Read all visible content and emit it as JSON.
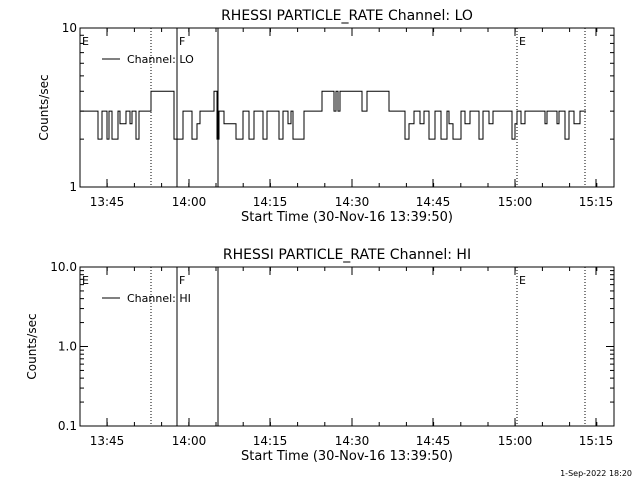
{
  "chart_data": [
    {
      "type": "line",
      "title": "RHESSI PARTICLE_RATE Channel: LO",
      "xlabel": "Start Time (30-Nov-16 13:39:50)",
      "ylabel": "Counts/sec",
      "yscale": "log",
      "ylim": [
        1,
        10
      ],
      "ytick_labels": [
        "1",
        "10"
      ],
      "xlim_minutes": [
        13.67,
        99.5
      ],
      "xtick_labels": [
        "13:45",
        "14:00",
        "14:15",
        "14:30",
        "14:45",
        "15:00",
        "15:15"
      ],
      "legend": "Channel: LO",
      "legend_position": "top-left",
      "markers": [
        {
          "label": "E",
          "time": "13:39:50",
          "style": "dotted",
          "line": false
        },
        {
          "label": "",
          "time": "13:54",
          "style": "dotted",
          "line": true
        },
        {
          "label": "F",
          "time": "13:58:30",
          "style": "solid",
          "line": true
        },
        {
          "label": "",
          "time": "14:06",
          "style": "solid",
          "line": true
        },
        {
          "label": "E",
          "time": "15:02",
          "style": "dotted",
          "line": true
        },
        {
          "label": "",
          "time": "15:15",
          "style": "dotted",
          "line": true
        }
      ],
      "series": [
        {
          "name": "Channel: LO",
          "level_values": [
            2.0,
            2.5,
            3.0
          ],
          "note_pattern": "noisy step counts mostly between 2 and 3 counts/sec"
        }
      ]
    },
    {
      "type": "line",
      "title": "RHESSI PARTICLE_RATE Channel: HI",
      "xlabel": "Start Time (30-Nov-16 13:39:50)",
      "ylabel": "Counts/sec",
      "yscale": "log",
      "ylim": [
        0.1,
        10.0
      ],
      "ytick_labels": [
        "0.1",
        "1.0",
        "10.0"
      ],
      "xtick_labels": [
        "13:45",
        "14:00",
        "14:15",
        "14:30",
        "14:45",
        "15:00",
        "15:15"
      ],
      "legend": "Channel: HI",
      "legend_position": "top-left",
      "markers": [
        {
          "label": "E",
          "time": "13:39:50",
          "style": "dotted",
          "line": false
        },
        {
          "label": "",
          "time": "13:54",
          "style": "dotted",
          "line": true
        },
        {
          "label": "F",
          "time": "13:58:30",
          "style": "solid",
          "line": true
        },
        {
          "label": "",
          "time": "14:06",
          "style": "solid",
          "line": true
        },
        {
          "label": "E",
          "time": "15:02",
          "style": "dotted",
          "line": true
        },
        {
          "label": "",
          "time": "15:15",
          "style": "dotted",
          "line": true
        }
      ],
      "series": [
        {
          "name": "Channel: HI",
          "values": []
        }
      ]
    }
  ],
  "footer_date": "1-Sep-2022 18:20"
}
